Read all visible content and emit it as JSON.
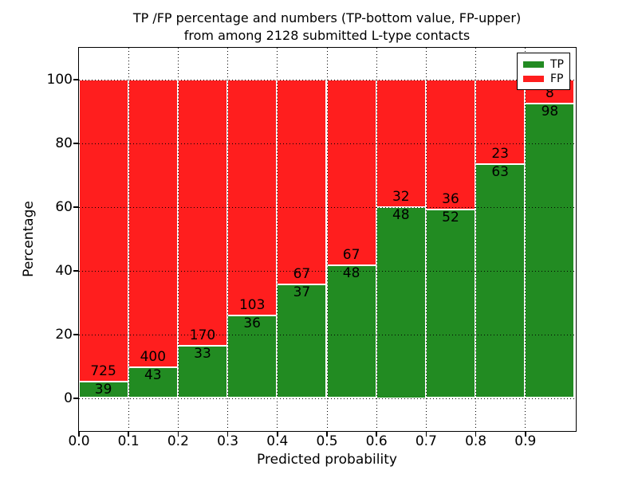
{
  "figure": {
    "title_line1": "TP /FP percentage and numbers (TP-bottom value, FP-upper)",
    "title_line2": "from among 2128 submitted L-type contacts"
  },
  "chart_data": {
    "type": "bar",
    "stacked": true,
    "normalized_to": 100,
    "title": "TP /FP percentage and numbers (TP-bottom value, FP-upper) from among 2128 submitted L-type contacts",
    "xlabel": "Predicted probability",
    "ylabel": "Percentage",
    "total_contacts": 2128,
    "bin_starts": [
      0.0,
      0.1,
      0.2,
      0.3,
      0.4,
      0.5,
      0.6,
      0.7,
      0.8,
      0.9
    ],
    "bin_width": 0.1,
    "series": [
      {
        "name": "TP",
        "color": "#228B22",
        "values": [
          39,
          43,
          33,
          36,
          37,
          48,
          48,
          52,
          63,
          98
        ]
      },
      {
        "name": "FP",
        "color": "#ff1e1e",
        "values": [
          725,
          400,
          170,
          103,
          67,
          67,
          32,
          36,
          23,
          8
        ]
      }
    ],
    "tp_percent": [
      5.1,
      9.7,
      16.3,
      25.9,
      35.6,
      41.7,
      60.0,
      59.1,
      73.3,
      92.5
    ],
    "xticks": [
      "0.0",
      "0.1",
      "0.2",
      "0.3",
      "0.4",
      "0.5",
      "0.6",
      "0.7",
      "0.8",
      "0.9"
    ],
    "yticks": [
      "0",
      "20",
      "40",
      "60",
      "80",
      "100"
    ],
    "ytick_values": [
      0,
      20,
      40,
      60,
      80,
      100
    ],
    "xlim": [
      0,
      1.0
    ],
    "ylim": [
      -10,
      110
    ],
    "grid": "dotted",
    "legend_position": "upper right",
    "legend_entries": [
      "TP",
      "FP"
    ]
  }
}
